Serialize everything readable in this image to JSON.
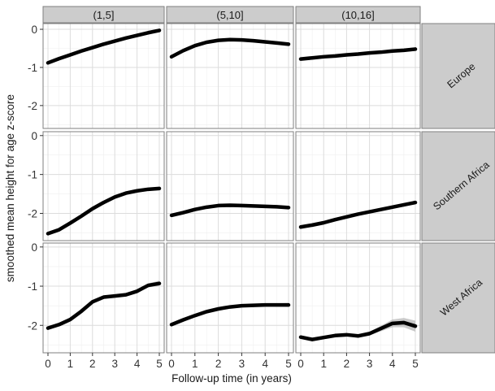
{
  "chart_data": {
    "type": "line",
    "facet_columns": [
      "(1,5]",
      "(5,10]",
      "(10,16]"
    ],
    "facet_rows": [
      "Europe",
      "Southern Africa",
      "West Africa"
    ],
    "xlabel": "Follow-up time (in years)",
    "ylabel": "smoothed mean height for age z-score",
    "x_ticks": [
      "0",
      "1",
      "2",
      "3",
      "4",
      "5"
    ],
    "xlim": [
      0,
      5
    ],
    "y_ticks_by_row": [
      [
        "0",
        "-1",
        "-2"
      ],
      [
        "0",
        "-1",
        "-2"
      ],
      [
        "0",
        "-1",
        "-2"
      ]
    ],
    "ylim_by_row": [
      [
        -2.6,
        0.15
      ],
      [
        -2.7,
        0.1
      ],
      [
        -2.7,
        0.1
      ]
    ],
    "grid": true,
    "colors": {
      "line": "#000000",
      "ribbon": "#b8b8b8",
      "strip": "#cccccc",
      "panel_border": "#7f7f7f",
      "grid_major": "#dcdcdc",
      "grid_minor": "#efefef"
    },
    "panels": [
      {
        "row": 0,
        "col": 0,
        "x": [
          0,
          0.5,
          1,
          1.5,
          2,
          2.5,
          3,
          3.5,
          4,
          4.5,
          5
        ],
        "y": [
          -0.88,
          -0.77,
          -0.67,
          -0.57,
          -0.48,
          -0.39,
          -0.31,
          -0.23,
          -0.16,
          -0.09,
          -0.03
        ],
        "band": [
          0.02,
          0.02,
          0.02,
          0.02,
          0.02,
          0.02,
          0.02,
          0.02,
          0.02,
          0.02,
          0.04
        ]
      },
      {
        "row": 0,
        "col": 1,
        "x": [
          0,
          0.5,
          1,
          1.5,
          2,
          2.5,
          3,
          3.5,
          4,
          4.5,
          5
        ],
        "y": [
          -0.72,
          -0.56,
          -0.43,
          -0.34,
          -0.29,
          -0.27,
          -0.28,
          -0.3,
          -0.33,
          -0.36,
          -0.39
        ],
        "band": [
          0.03,
          0.02,
          0.02,
          0.02,
          0.02,
          0.02,
          0.02,
          0.02,
          0.02,
          0.03,
          0.04
        ]
      },
      {
        "row": 0,
        "col": 2,
        "x": [
          0,
          0.5,
          1,
          1.5,
          2,
          2.5,
          3,
          3.5,
          4,
          4.5,
          5
        ],
        "y": [
          -0.78,
          -0.75,
          -0.72,
          -0.7,
          -0.67,
          -0.65,
          -0.62,
          -0.6,
          -0.57,
          -0.55,
          -0.52
        ],
        "band": [
          0.03,
          0.03,
          0.02,
          0.02,
          0.02,
          0.02,
          0.02,
          0.03,
          0.03,
          0.04,
          0.05
        ]
      },
      {
        "row": 1,
        "col": 0,
        "x": [
          0,
          0.5,
          1,
          1.5,
          2,
          2.5,
          3,
          3.5,
          4,
          4.5,
          5
        ],
        "y": [
          -2.52,
          -2.42,
          -2.25,
          -2.07,
          -1.88,
          -1.72,
          -1.58,
          -1.48,
          -1.42,
          -1.38,
          -1.36
        ],
        "band": [
          0.03,
          0.03,
          0.03,
          0.03,
          0.03,
          0.03,
          0.03,
          0.03,
          0.03,
          0.03,
          0.04
        ]
      },
      {
        "row": 1,
        "col": 1,
        "x": [
          0,
          0.5,
          1,
          1.5,
          2,
          2.5,
          3,
          3.5,
          4,
          4.5,
          5
        ],
        "y": [
          -2.05,
          -1.98,
          -1.9,
          -1.84,
          -1.8,
          -1.79,
          -1.8,
          -1.81,
          -1.82,
          -1.83,
          -1.85
        ],
        "band": [
          0.03,
          0.03,
          0.03,
          0.03,
          0.03,
          0.03,
          0.03,
          0.03,
          0.03,
          0.03,
          0.04
        ]
      },
      {
        "row": 1,
        "col": 2,
        "x": [
          0,
          0.5,
          1,
          1.5,
          2,
          2.5,
          3,
          3.5,
          4,
          4.5,
          5
        ],
        "y": [
          -2.35,
          -2.3,
          -2.24,
          -2.16,
          -2.09,
          -2.02,
          -1.96,
          -1.9,
          -1.84,
          -1.78,
          -1.72
        ],
        "band": [
          0.03,
          0.03,
          0.03,
          0.03,
          0.03,
          0.03,
          0.03,
          0.03,
          0.03,
          0.04,
          0.05
        ]
      },
      {
        "row": 2,
        "col": 0,
        "x": [
          0,
          0.5,
          1,
          1.5,
          2,
          2.5,
          3,
          3.5,
          4,
          4.5,
          5
        ],
        "y": [
          -2.07,
          -1.98,
          -1.85,
          -1.64,
          -1.4,
          -1.28,
          -1.25,
          -1.22,
          -1.13,
          -0.98,
          -0.93
        ],
        "band": [
          0.03,
          0.03,
          0.03,
          0.03,
          0.03,
          0.03,
          0.03,
          0.03,
          0.04,
          0.05,
          0.07
        ]
      },
      {
        "row": 2,
        "col": 1,
        "x": [
          0,
          0.5,
          1,
          1.5,
          2,
          2.5,
          3,
          3.5,
          4,
          4.5,
          5
        ],
        "y": [
          -1.98,
          -1.86,
          -1.75,
          -1.65,
          -1.58,
          -1.53,
          -1.5,
          -1.49,
          -1.48,
          -1.48,
          -1.48
        ],
        "band": [
          0.03,
          0.03,
          0.03,
          0.03,
          0.03,
          0.03,
          0.03,
          0.03,
          0.03,
          0.04,
          0.05
        ]
      },
      {
        "row": 2,
        "col": 2,
        "x": [
          0,
          0.5,
          1,
          1.5,
          2,
          2.5,
          3,
          3.5,
          4,
          4.5,
          5
        ],
        "y": [
          -2.3,
          -2.36,
          -2.31,
          -2.26,
          -2.24,
          -2.27,
          -2.21,
          -2.08,
          -1.95,
          -1.93,
          -2.02
        ],
        "band": [
          0.04,
          0.04,
          0.04,
          0.04,
          0.04,
          0.04,
          0.05,
          0.07,
          0.1,
          0.12,
          0.14
        ]
      }
    ]
  }
}
